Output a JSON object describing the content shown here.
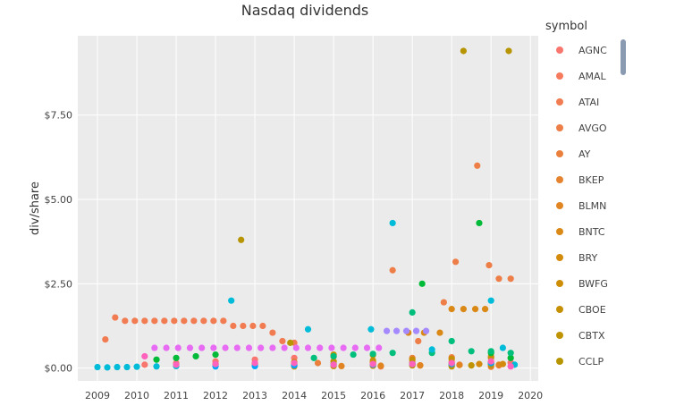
{
  "chart_data": {
    "type": "scatter",
    "title": "Nasdaq dividends",
    "xlabel": "",
    "ylabel": "div/share",
    "xlim": [
      2008.5,
      2020.2
    ],
    "ylim": [
      -0.38,
      9.85
    ],
    "x_ticks": [
      2009,
      2010,
      2011,
      2012,
      2013,
      2014,
      2015,
      2016,
      2017,
      2018,
      2019,
      2020
    ],
    "y_ticks": [
      0,
      2.5,
      5,
      7.5
    ],
    "y_tick_labels": [
      "$0.00",
      "$2.50",
      "$5.00",
      "$7.50"
    ],
    "grid": true,
    "background": "#ebebeb",
    "legend": {
      "title": "symbol",
      "placement": "right"
    },
    "series": [
      {
        "name": "AGNC",
        "color": "#f8766d",
        "points": [
          [
            2010.2,
            0.1
          ],
          [
            2011.0,
            0.15
          ],
          [
            2012.0,
            0.2
          ],
          [
            2013.0,
            0.25
          ],
          [
            2014.0,
            0.3
          ],
          [
            2015.0,
            0.2
          ],
          [
            2016.0,
            0.18
          ],
          [
            2017.0,
            0.18
          ],
          [
            2018.0,
            0.18
          ],
          [
            2019.0,
            0.16
          ],
          [
            2019.5,
            0.16
          ]
        ]
      },
      {
        "name": "AMAL",
        "color": "#f57a5e",
        "points": [
          [
            2016.2,
            0.05
          ],
          [
            2017.2,
            0.08
          ],
          [
            2018.2,
            0.1
          ],
          [
            2019.2,
            0.08
          ]
        ]
      },
      {
        "name": "ATAI",
        "color": "#f27c52",
        "points": [
          [
            2009.2,
            0.85
          ],
          [
            2009.45,
            1.5
          ],
          [
            2009.7,
            1.4
          ],
          [
            2009.95,
            1.4
          ],
          [
            2010.2,
            1.4
          ],
          [
            2010.45,
            1.4
          ],
          [
            2010.7,
            1.4
          ],
          [
            2010.95,
            1.4
          ],
          [
            2011.2,
            1.4
          ],
          [
            2011.45,
            1.4
          ],
          [
            2011.7,
            1.4
          ],
          [
            2011.95,
            1.4
          ],
          [
            2012.2,
            1.4
          ],
          [
            2012.45,
            1.25
          ],
          [
            2012.7,
            1.25
          ],
          [
            2012.95,
            1.25
          ],
          [
            2013.2,
            1.25
          ],
          [
            2013.45,
            1.05
          ],
          [
            2013.7,
            0.8
          ],
          [
            2014.0,
            0.75
          ]
        ]
      },
      {
        "name": "AVGO",
        "color": "#ee7e47",
        "points": [
          [
            2016.5,
            2.9
          ],
          [
            2017.15,
            0.8
          ],
          [
            2017.8,
            1.95
          ],
          [
            2018.1,
            3.15
          ],
          [
            2018.65,
            6.0
          ],
          [
            2018.95,
            3.05
          ],
          [
            2019.2,
            2.65
          ],
          [
            2019.5,
            2.65
          ]
        ]
      },
      {
        "name": "AY",
        "color": "#ea803c",
        "points": [
          [
            2014.6,
            0.15
          ],
          [
            2015.0,
            0.35
          ],
          [
            2016.0,
            0.17
          ],
          [
            2017.0,
            0.3
          ],
          [
            2018.0,
            0.32
          ],
          [
            2019.0,
            0.35
          ]
        ]
      },
      {
        "name": "BKEP",
        "color": "#e5832f",
        "points": [
          [
            2012.0,
            0.1
          ],
          [
            2013.0,
            0.11
          ],
          [
            2014.0,
            0.12
          ],
          [
            2015.0,
            0.13
          ],
          [
            2016.0,
            0.14
          ],
          [
            2017.0,
            0.13
          ],
          [
            2018.0,
            0.13
          ],
          [
            2019.0,
            0.04
          ]
        ]
      },
      {
        "name": "BLMN",
        "color": "#e08522",
        "points": [
          [
            2015.2,
            0.06
          ],
          [
            2016.2,
            0.07
          ],
          [
            2017.2,
            0.08
          ],
          [
            2018.2,
            0.09
          ],
          [
            2019.2,
            0.1
          ]
        ]
      },
      {
        "name": "BNTC",
        "color": "#da8816",
        "points": [
          [
            2016.9,
            1.05
          ],
          [
            2017.3,
            1.05
          ],
          [
            2017.7,
            1.05
          ],
          [
            2018.0,
            1.75
          ],
          [
            2018.3,
            1.75
          ],
          [
            2018.6,
            1.75
          ],
          [
            2018.85,
            1.75
          ]
        ]
      },
      {
        "name": "BRY",
        "color": "#d48b0c",
        "points": [
          [
            2018.7,
            0.12
          ],
          [
            2019.0,
            0.12
          ],
          [
            2019.3,
            0.12
          ]
        ]
      },
      {
        "name": "BWFG",
        "color": "#cd8e05",
        "points": [
          [
            2014.0,
            0.05
          ],
          [
            2015.0,
            0.06
          ],
          [
            2016.0,
            0.07
          ],
          [
            2017.0,
            0.08
          ],
          [
            2018.0,
            0.09
          ]
        ]
      },
      {
        "name": "CBOE",
        "color": "#c69003",
        "points": [
          [
            2011.0,
            0.1
          ],
          [
            2012.0,
            0.12
          ],
          [
            2013.0,
            0.15
          ],
          [
            2014.0,
            0.18
          ],
          [
            2015.0,
            0.2
          ],
          [
            2016.0,
            0.23
          ],
          [
            2017.0,
            0.25
          ],
          [
            2018.0,
            0.27
          ],
          [
            2019.0,
            0.31
          ]
        ]
      },
      {
        "name": "CBTX",
        "color": "#bf9302",
        "points": [
          [
            2018.0,
            0.05
          ],
          [
            2018.5,
            0.08
          ],
          [
            2019.0,
            0.1
          ]
        ]
      },
      {
        "name": "CCLP",
        "color": "#b79502",
        "points": [
          [
            2012.65,
            3.8
          ],
          [
            2013.9,
            0.75
          ],
          [
            2015.0,
            0.4
          ],
          [
            2016.0,
            0.39
          ],
          [
            2017.0,
            0.1
          ],
          [
            2018.3,
            9.4
          ],
          [
            2019.45,
            9.4
          ]
        ]
      },
      {
        "name": "—",
        "color": "#00ba38",
        "points": [
          [
            2010.5,
            0.25
          ],
          [
            2011.0,
            0.3
          ],
          [
            2011.5,
            0.35
          ],
          [
            2012.0,
            0.4
          ],
          [
            2017.25,
            2.5
          ],
          [
            2018.7,
            4.3
          ],
          [
            2019.0,
            0.45
          ],
          [
            2019.5,
            0.3
          ]
        ]
      },
      {
        "name": "—",
        "color": "#00bf7d",
        "points": [
          [
            2014.5,
            0.3
          ],
          [
            2015.0,
            0.35
          ],
          [
            2015.5,
            0.4
          ],
          [
            2016.0,
            0.42
          ],
          [
            2016.5,
            0.45
          ],
          [
            2017.0,
            1.65
          ],
          [
            2017.5,
            0.45
          ],
          [
            2018.0,
            0.8
          ],
          [
            2018.5,
            0.5
          ],
          [
            2019.0,
            0.5
          ],
          [
            2019.5,
            0.45
          ]
        ]
      },
      {
        "name": "—",
        "color": "#00bcd8",
        "points": [
          [
            2009.0,
            0.03
          ],
          [
            2009.25,
            0.02
          ],
          [
            2009.5,
            0.03
          ],
          [
            2009.75,
            0.03
          ],
          [
            2010.0,
            0.04
          ],
          [
            2010.5,
            0.05
          ],
          [
            2011.0,
            0.06
          ],
          [
            2012.4,
            2.0
          ],
          [
            2014.35,
            1.15
          ],
          [
            2015.95,
            1.15
          ],
          [
            2016.5,
            4.3
          ],
          [
            2017.5,
            0.55
          ],
          [
            2019.0,
            2.0
          ],
          [
            2019.3,
            0.6
          ],
          [
            2019.6,
            0.1
          ]
        ]
      },
      {
        "name": "—",
        "color": "#00a5ff",
        "points": [
          [
            2012.0,
            0.05
          ],
          [
            2013.0,
            0.06
          ],
          [
            2014.0,
            0.08
          ],
          [
            2015.0,
            0.1
          ],
          [
            2016.0,
            0.1
          ],
          [
            2017.0,
            0.12
          ],
          [
            2018.0,
            0.12
          ],
          [
            2019.0,
            0.15
          ]
        ]
      },
      {
        "name": "—",
        "color": "#a58aff",
        "points": [
          [
            2016.35,
            1.1
          ],
          [
            2016.6,
            1.1
          ],
          [
            2016.85,
            1.1
          ],
          [
            2017.1,
            1.1
          ],
          [
            2017.35,
            1.1
          ]
        ]
      },
      {
        "name": "—",
        "color": "#e76bf3",
        "points": [
          [
            2010.45,
            0.6
          ],
          [
            2010.75,
            0.6
          ],
          [
            2011.05,
            0.6
          ],
          [
            2011.35,
            0.6
          ],
          [
            2011.65,
            0.6
          ],
          [
            2011.95,
            0.6
          ],
          [
            2012.25,
            0.6
          ],
          [
            2012.55,
            0.6
          ],
          [
            2012.85,
            0.6
          ],
          [
            2013.15,
            0.6
          ],
          [
            2013.45,
            0.6
          ],
          [
            2013.75,
            0.6
          ],
          [
            2014.05,
            0.6
          ],
          [
            2014.35,
            0.6
          ],
          [
            2014.65,
            0.6
          ],
          [
            2014.95,
            0.6
          ],
          [
            2015.25,
            0.6
          ],
          [
            2015.55,
            0.6
          ],
          [
            2015.85,
            0.6
          ],
          [
            2016.15,
            0.6
          ]
        ]
      },
      {
        "name": "—",
        "color": "#ff62bc",
        "points": [
          [
            2010.2,
            0.35
          ],
          [
            2011.0,
            0.1
          ],
          [
            2012.0,
            0.12
          ],
          [
            2013.0,
            0.15
          ],
          [
            2014.0,
            0.15
          ],
          [
            2015.0,
            0.1
          ],
          [
            2016.0,
            0.12
          ],
          [
            2017.0,
            0.12
          ],
          [
            2018.0,
            0.15
          ],
          [
            2019.0,
            0.2
          ],
          [
            2019.5,
            0.05
          ]
        ]
      }
    ]
  },
  "legend_items": [
    "AGNC",
    "AMAL",
    "ATAI",
    "AVGO",
    "AY",
    "BKEP",
    "BLMN",
    "BNTC",
    "BRY",
    "BWFG",
    "CBOE",
    "CBTX",
    "CCLP"
  ],
  "legend_colors": [
    "#f8766d",
    "#f57a5e",
    "#f27c52",
    "#ee7e47",
    "#ea803c",
    "#e5832f",
    "#e08522",
    "#da8816",
    "#d48b0c",
    "#cd8e05",
    "#c69003",
    "#bf9302",
    "#b79502"
  ]
}
